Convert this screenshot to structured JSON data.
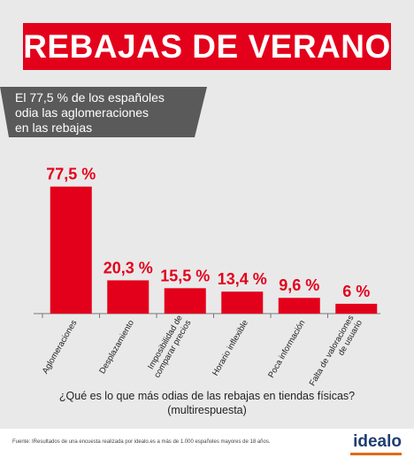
{
  "header": {
    "title": "REBAJAS DE VERANO"
  },
  "callout": {
    "lines": [
      "El 77,5 % de los españoles",
      "odia las aglomeraciones",
      "en las rebajas"
    ]
  },
  "chart_data": {
    "type": "bar",
    "categories": [
      "Aglomeraciones",
      "Desplazamiento",
      "Imposibilidad de\ncomparar precios",
      "Horario inflexible",
      "Poca información",
      "Falta de valoraciones\nde usuario"
    ],
    "values": [
      77.5,
      20.3,
      15.5,
      13.4,
      9.6,
      6
    ],
    "value_labels": [
      "77,5 %",
      "20,3 %",
      "15,5 %",
      "13,4 %",
      "9,6 %",
      "6 %"
    ],
    "ylim": [
      0,
      80
    ],
    "bar_color": "#e3001b",
    "grid": false,
    "xlabel": "¿Qué es lo que más odias de las rebajas en tiendas físicas? (multirespuesta)",
    "ylabel": ""
  },
  "footer": {
    "source": "Fuente: IResultados de una encuesta realizada por idealo.es a más de 1.000 españoles mayores de 18 años.",
    "logo": "idealo",
    "logo_color": "#1f3e73",
    "logo_accent": "#e06a17"
  }
}
